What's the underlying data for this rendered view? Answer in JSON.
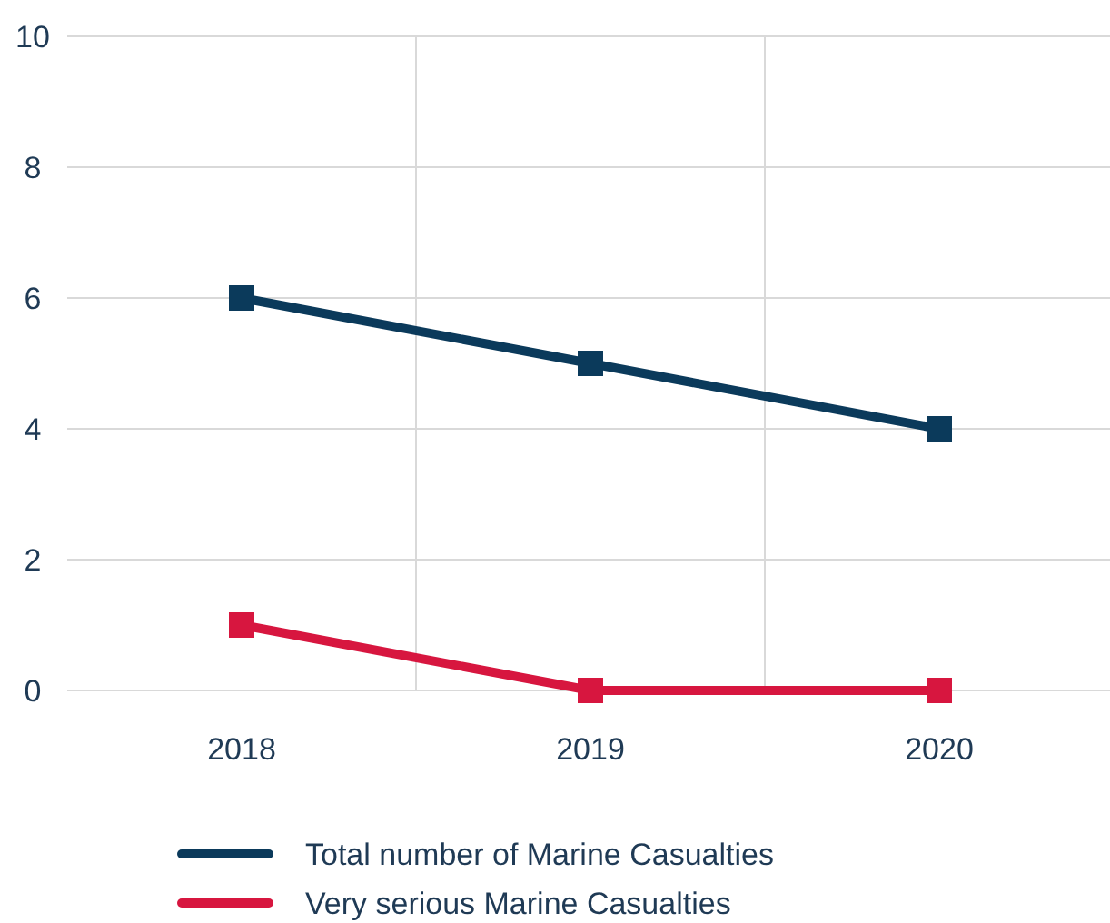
{
  "chart_data": {
    "type": "line",
    "categories": [
      "2018",
      "2019",
      "2020"
    ],
    "series": [
      {
        "name": "Total number of Marine Casualties",
        "color": "#0b3a5b",
        "values": [
          6,
          5,
          4
        ]
      },
      {
        "name": "Very serious Marine Casualties",
        "color": "#d7163f",
        "values": [
          1,
          0,
          0
        ]
      }
    ],
    "ylim": [
      0,
      10
    ],
    "yticks": [
      0,
      2,
      4,
      6,
      8,
      10
    ],
    "grid": true,
    "legend": "bottom",
    "marker": "square",
    "line_style": "solid"
  }
}
